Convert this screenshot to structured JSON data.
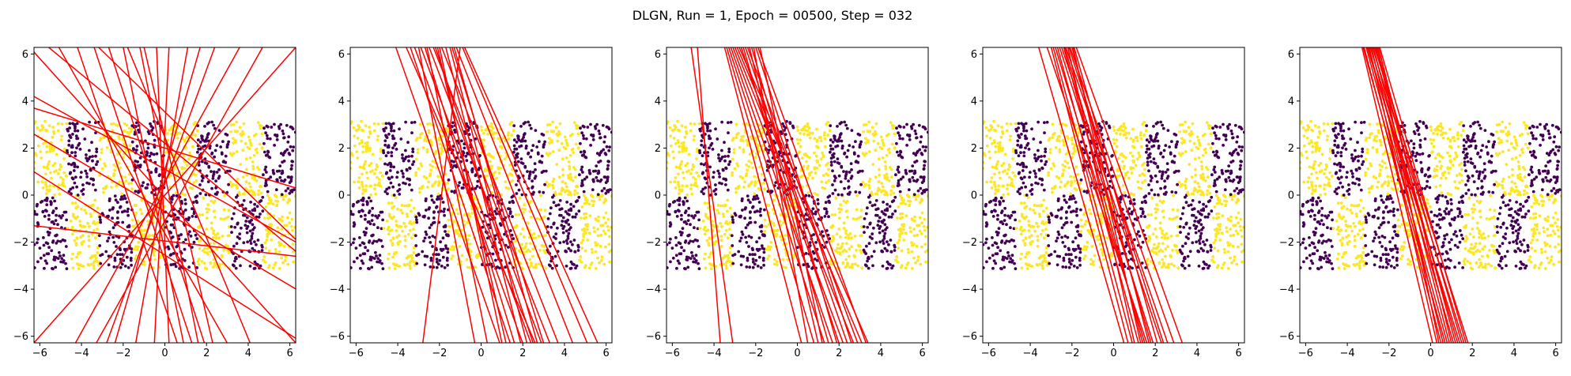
{
  "title": "DLGN, Run = 1, Epoch = 00500, Step = 032",
  "chart_data": {
    "type": "scatter",
    "title": "DLGN, Run = 1, Epoch = 00500, Step = 032",
    "xlim": [
      -6.28,
      6.28
    ],
    "ylim": [
      -6.28,
      6.28
    ],
    "xticks": [
      -6,
      -4,
      -2,
      0,
      2,
      4,
      6
    ],
    "yticks": [
      -6,
      -4,
      -2,
      0,
      2,
      4,
      6
    ],
    "xtick_labels": [
      "−6",
      "−4",
      "−2",
      "0",
      "2",
      "4",
      "6"
    ],
    "ytick_labels": [
      "−6",
      "−4",
      "−2",
      "0",
      "2",
      "4",
      "6"
    ],
    "grid": false,
    "legend": "none",
    "colors": {
      "class0": "#440154",
      "class1": "#fde725",
      "lines": "#ff0000"
    },
    "point_pattern": {
      "description": "Checkerboard of two classes; x in [-6.28, 6.28] split into 8 bands of width pi/2, y in [-3.14, 0] and [0, 3.14]",
      "x_band_edges": [
        -6.28,
        -4.71,
        -3.14,
        -1.57,
        0,
        1.57,
        3.14,
        4.71,
        6.28
      ],
      "y_band_edges": [
        -3.14,
        0,
        3.14
      ],
      "upper_row_classes": [
        1,
        0,
        1,
        0,
        1,
        0,
        1,
        0
      ],
      "lower_row_classes": [
        0,
        1,
        0,
        1,
        0,
        1,
        0,
        1
      ],
      "points_per_cell": 95
    },
    "subplots": [
      {
        "name": "panel-1",
        "lines": [
          [
            [
              -6.3,
              6.1
            ],
            [
              6.3,
              -6.3
            ]
          ],
          [
            [
              -5.6,
              6.3
            ],
            [
              6.3,
              -2.4
            ]
          ],
          [
            [
              -6.3,
              1.0
            ],
            [
              6.3,
              -6.1
            ]
          ],
          [
            [
              -6.3,
              -1.3
            ],
            [
              6.3,
              -2.6
            ]
          ],
          [
            [
              -6.3,
              4.2
            ],
            [
              6.3,
              -2.0
            ]
          ],
          [
            [
              -4.2,
              6.3
            ],
            [
              0.6,
              -6.3
            ]
          ],
          [
            [
              -3.4,
              6.3
            ],
            [
              1.3,
              -6.3
            ]
          ],
          [
            [
              -2.7,
              6.3
            ],
            [
              1.9,
              -6.3
            ]
          ],
          [
            [
              -2.0,
              6.3
            ],
            [
              0.9,
              -6.3
            ]
          ],
          [
            [
              -1.2,
              6.3
            ],
            [
              1.6,
              -6.3
            ]
          ],
          [
            [
              -0.4,
              6.3
            ],
            [
              0.2,
              -6.3
            ]
          ],
          [
            [
              0.2,
              6.3
            ],
            [
              -0.5,
              -6.3
            ]
          ],
          [
            [
              1.1,
              6.3
            ],
            [
              -1.4,
              -6.3
            ]
          ],
          [
            [
              2.4,
              6.3
            ],
            [
              -2.8,
              -6.3
            ]
          ],
          [
            [
              3.6,
              6.3
            ],
            [
              -4.3,
              -6.3
            ]
          ],
          [
            [
              6.3,
              6.3
            ],
            [
              -6.3,
              -6.3
            ]
          ],
          [
            [
              -1.8,
              6.3
            ],
            [
              4.1,
              -6.3
            ]
          ],
          [
            [
              -6.3,
              3.7
            ],
            [
              6.3,
              0.3
            ]
          ],
          [
            [
              -3.2,
              6.3
            ],
            [
              6.3,
              -1.9
            ]
          ],
          [
            [
              -5.1,
              6.3
            ],
            [
              3.0,
              -6.3
            ]
          ],
          [
            [
              -1.0,
              6.3
            ],
            [
              2.3,
              -6.3
            ]
          ],
          [
            [
              -6.3,
              2.6
            ],
            [
              6.3,
              -4.0
            ]
          ],
          [
            [
              4.7,
              6.3
            ],
            [
              -3.3,
              -6.3
            ]
          ],
          [
            [
              -2.4,
              -6.3
            ],
            [
              1.7,
              6.3
            ]
          ]
        ]
      },
      {
        "name": "panel-2",
        "lines": [
          [
            [
              -4.1,
              6.3
            ],
            [
              0.9,
              -6.3
            ]
          ],
          [
            [
              -3.6,
              6.3
            ],
            [
              2.6,
              -6.3
            ]
          ],
          [
            [
              -3.2,
              6.3
            ],
            [
              2.0,
              -6.3
            ]
          ],
          [
            [
              -2.9,
              6.3
            ],
            [
              2.4,
              -6.3
            ]
          ],
          [
            [
              -2.7,
              6.3
            ],
            [
              1.6,
              -6.3
            ]
          ],
          [
            [
              -2.5,
              6.3
            ],
            [
              2.9,
              -6.3
            ]
          ],
          [
            [
              -2.3,
              6.3
            ],
            [
              3.3,
              -6.3
            ]
          ],
          [
            [
              -2.1,
              6.3
            ],
            [
              1.2,
              -6.3
            ]
          ],
          [
            [
              -1.9,
              6.3
            ],
            [
              3.7,
              -6.3
            ]
          ],
          [
            [
              -1.7,
              6.3
            ],
            [
              1.9,
              -6.3
            ]
          ],
          [
            [
              -1.5,
              6.3
            ],
            [
              2.2,
              -6.3
            ]
          ],
          [
            [
              -1.3,
              6.3
            ],
            [
              2.7,
              -6.3
            ]
          ],
          [
            [
              -1.2,
              6.3
            ],
            [
              4.4,
              -6.3
            ]
          ],
          [
            [
              -0.9,
              6.3
            ],
            [
              5.1,
              -6.3
            ]
          ],
          [
            [
              -0.8,
              6.3
            ],
            [
              5.6,
              -6.3
            ]
          ],
          [
            [
              -2.0,
              6.3
            ],
            [
              1.0,
              -6.3
            ]
          ],
          [
            [
              -2.6,
              6.3
            ],
            [
              0.3,
              -6.3
            ]
          ],
          [
            [
              -3.0,
              6.3
            ],
            [
              -0.3,
              -6.3
            ]
          ],
          [
            [
              -2.8,
              -6.3
            ],
            [
              -1.0,
              6.3
            ]
          ],
          [
            [
              -1.4,
              6.3
            ],
            [
              3.0,
              -6.3
            ]
          ],
          [
            [
              -3.4,
              6.3
            ],
            [
              1.4,
              -6.3
            ]
          ],
          [
            [
              -2.2,
              6.3
            ],
            [
              2.5,
              -6.3
            ]
          ]
        ]
      },
      {
        "name": "panel-3",
        "lines": [
          [
            [
              -5.1,
              6.3
            ],
            [
              -3.1,
              -6.3
            ]
          ],
          [
            [
              -4.8,
              6.3
            ],
            [
              -3.7,
              -6.3
            ]
          ],
          [
            [
              -3.4,
              6.3
            ],
            [
              0.8,
              -6.3
            ]
          ],
          [
            [
              -3.3,
              6.3
            ],
            [
              1.3,
              -6.3
            ]
          ],
          [
            [
              -3.2,
              6.3
            ],
            [
              1.7,
              -6.3
            ]
          ],
          [
            [
              -3.1,
              6.3
            ],
            [
              2.2,
              -6.3
            ]
          ],
          [
            [
              -3.0,
              6.3
            ],
            [
              2.7,
              -6.3
            ]
          ],
          [
            [
              -2.9,
              6.3
            ],
            [
              3.1,
              -6.3
            ]
          ],
          [
            [
              -2.8,
              6.3
            ],
            [
              3.4,
              -6.3
            ]
          ],
          [
            [
              -2.7,
              6.3
            ],
            [
              2.0,
              -6.3
            ]
          ],
          [
            [
              -2.6,
              6.3
            ],
            [
              1.5,
              -6.3
            ]
          ],
          [
            [
              -2.5,
              6.3
            ],
            [
              2.4,
              -6.3
            ]
          ],
          [
            [
              -2.4,
              6.3
            ],
            [
              2.9,
              -6.3
            ]
          ],
          [
            [
              -2.3,
              6.3
            ],
            [
              1.0,
              -6.3
            ]
          ],
          [
            [
              -2.2,
              6.3
            ],
            [
              1.9,
              -6.3
            ]
          ],
          [
            [
              -2.1,
              6.3
            ],
            [
              0.5,
              -6.3
            ]
          ],
          [
            [
              -2.0,
              6.3
            ],
            [
              2.6,
              -6.3
            ]
          ],
          [
            [
              -1.9,
              6.3
            ],
            [
              3.3,
              -6.3
            ]
          ],
          [
            [
              -1.8,
              6.3
            ],
            [
              1.2,
              -6.3
            ]
          ],
          [
            [
              -3.5,
              6.3
            ],
            [
              0.2,
              -6.3
            ]
          ]
        ]
      },
      {
        "name": "panel-4",
        "lines": [
          [
            [
              -3.6,
              6.3
            ],
            [
              0.5,
              -6.3
            ]
          ],
          [
            [
              -3.2,
              6.3
            ],
            [
              1.6,
              -6.3
            ]
          ],
          [
            [
              -2.9,
              6.3
            ],
            [
              0.9,
              -6.3
            ]
          ],
          [
            [
              -2.7,
              6.3
            ],
            [
              1.2,
              -6.3
            ]
          ],
          [
            [
              -2.6,
              6.3
            ],
            [
              1.9,
              -6.3
            ]
          ],
          [
            [
              -2.5,
              6.3
            ],
            [
              2.3,
              -6.3
            ]
          ],
          [
            [
              -2.4,
              6.3
            ],
            [
              1.4,
              -6.3
            ]
          ],
          [
            [
              -2.3,
              6.3
            ],
            [
              2.6,
              -6.3
            ]
          ],
          [
            [
              -2.2,
              6.3
            ],
            [
              1.0,
              -6.3
            ]
          ],
          [
            [
              -2.1,
              6.3
            ],
            [
              2.9,
              -6.3
            ]
          ],
          [
            [
              -2.0,
              6.3
            ],
            [
              1.7,
              -6.3
            ]
          ],
          [
            [
              -1.9,
              6.3
            ],
            [
              2.1,
              -6.3
            ]
          ],
          [
            [
              -1.8,
              6.3
            ],
            [
              3.3,
              -6.3
            ]
          ],
          [
            [
              -2.8,
              6.3
            ],
            [
              1.5,
              -6.3
            ]
          ],
          [
            [
              -3.0,
              6.3
            ],
            [
              0.7,
              -6.3
            ]
          ],
          [
            [
              -2.35,
              6.3
            ],
            [
              1.8,
              -6.3
            ]
          ],
          [
            [
              -2.15,
              6.3
            ],
            [
              2.4,
              -6.3
            ]
          ],
          [
            [
              -1.95,
              6.3
            ],
            [
              1.3,
              -6.3
            ]
          ]
        ]
      },
      {
        "name": "panel-5",
        "lines": [
          [
            [
              -3.3,
              6.3
            ],
            [
              0.1,
              -6.3
            ]
          ],
          [
            [
              -3.2,
              6.3
            ],
            [
              0.5,
              -6.3
            ]
          ],
          [
            [
              -3.1,
              6.3
            ],
            [
              0.8,
              -6.3
            ]
          ],
          [
            [
              -3.0,
              6.3
            ],
            [
              1.1,
              -6.3
            ]
          ],
          [
            [
              -2.95,
              6.3
            ],
            [
              0.3,
              -6.3
            ]
          ],
          [
            [
              -2.9,
              6.3
            ],
            [
              1.3,
              -6.3
            ]
          ],
          [
            [
              -2.85,
              6.3
            ],
            [
              0.6,
              -6.3
            ]
          ],
          [
            [
              -2.8,
              6.3
            ],
            [
              1.6,
              -6.3
            ]
          ],
          [
            [
              -2.75,
              6.3
            ],
            [
              0.9,
              -6.3
            ]
          ],
          [
            [
              -2.7,
              6.3
            ],
            [
              1.8,
              -6.3
            ]
          ],
          [
            [
              -2.65,
              6.3
            ],
            [
              1.2,
              -6.3
            ]
          ],
          [
            [
              -2.6,
              6.3
            ],
            [
              1.5,
              -6.3
            ]
          ],
          [
            [
              -2.55,
              6.3
            ],
            [
              0.4,
              -6.3
            ]
          ],
          [
            [
              -2.5,
              6.3
            ],
            [
              1.0,
              -6.3
            ]
          ],
          [
            [
              -3.05,
              6.3
            ],
            [
              1.4,
              -6.3
            ]
          ],
          [
            [
              -2.45,
              6.3
            ],
            [
              1.7,
              -6.3
            ]
          ],
          [
            [
              -3.25,
              6.3
            ],
            [
              0.7,
              -6.3
            ]
          ]
        ]
      }
    ]
  }
}
